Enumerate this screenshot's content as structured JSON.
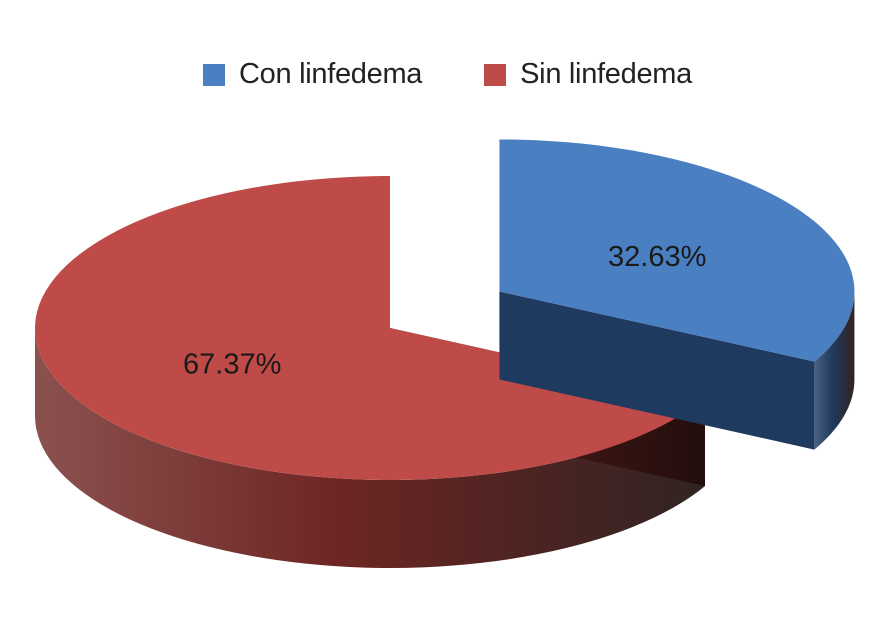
{
  "chart_data": {
    "type": "pie",
    "style": "3d-exploded",
    "title": "",
    "legend_position": "top",
    "slices": [
      {
        "name": "Con linfedema",
        "value": 32.63,
        "label": "32.63%",
        "color": "#4a7fc1",
        "side_color": "#1f3a5f",
        "exploded": true
      },
      {
        "name": "Sin linfedema",
        "value": 67.37,
        "label": "67.37%",
        "color": "#be4b48",
        "side_color": "#6e2623",
        "exploded": false
      }
    ]
  }
}
